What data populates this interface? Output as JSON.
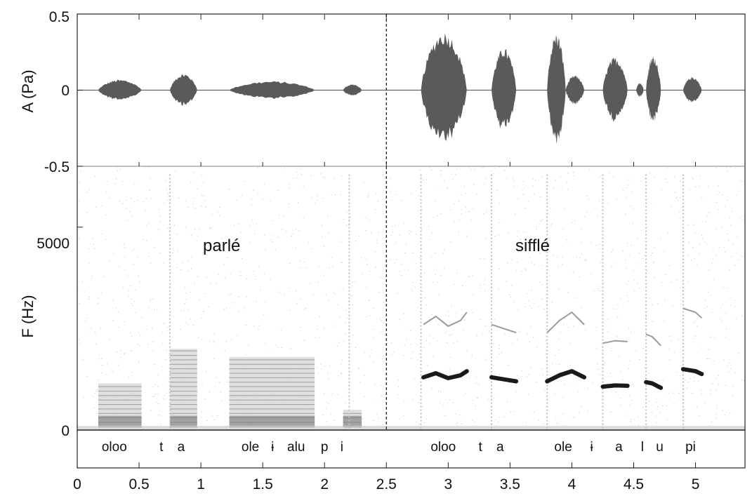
{
  "chart_data": [
    {
      "type": "line",
      "panel": "waveform",
      "ylabel": "A (Pa)",
      "ylim": [
        -0.5,
        0.5
      ],
      "yticks": [
        "0.5",
        "0",
        "-0.5"
      ],
      "grid": false,
      "bursts": [
        {
          "start": 0.17,
          "end": 0.52,
          "amp": 0.07
        },
        {
          "start": 0.75,
          "end": 0.97,
          "amp": 0.11
        },
        {
          "start": 1.23,
          "end": 1.92,
          "amp": 0.06
        },
        {
          "start": 2.15,
          "end": 2.3,
          "amp": 0.04
        },
        {
          "start": 2.78,
          "end": 3.15,
          "amp": 0.39
        },
        {
          "start": 3.35,
          "end": 3.55,
          "amp": 0.28
        },
        {
          "start": 3.8,
          "end": 3.95,
          "amp": 0.38
        },
        {
          "start": 3.95,
          "end": 4.1,
          "amp": 0.1
        },
        {
          "start": 4.25,
          "end": 4.45,
          "amp": 0.22
        },
        {
          "start": 4.52,
          "end": 4.58,
          "amp": 0.05
        },
        {
          "start": 4.6,
          "end": 4.72,
          "amp": 0.23
        },
        {
          "start": 4.9,
          "end": 5.05,
          "amp": 0.09
        }
      ]
    },
    {
      "type": "heatmap",
      "panel": "spectrogram",
      "ylabel": "F (Hz)",
      "yticks": [
        "5000",
        "0"
      ],
      "xlim": [
        0,
        5.4
      ],
      "ylim": [
        0,
        6500
      ],
      "xticks": [
        "0",
        "0.5",
        "1",
        "1.5",
        "2",
        "2.5",
        "3",
        "3.5",
        "4",
        "4.5",
        "5"
      ],
      "annotations": [
        "parlé",
        "sifflé"
      ],
      "divider_x": 2.5,
      "whistle_tracks": [
        {
          "x": [
            2.8,
            2.9,
            3.0,
            3.1,
            3.15
          ],
          "y": [
            1300,
            1400,
            1280,
            1350,
            1450
          ]
        },
        {
          "x": [
            3.35,
            3.45,
            3.55
          ],
          "y": [
            1300,
            1250,
            1200
          ]
        },
        {
          "x": [
            3.8,
            3.9,
            4.0,
            4.1
          ],
          "y": [
            1200,
            1350,
            1450,
            1300
          ]
        },
        {
          "x": [
            4.25,
            4.35,
            4.45
          ],
          "y": [
            1070,
            1100,
            1090
          ]
        },
        {
          "x": [
            4.6,
            4.65,
            4.72
          ],
          "y": [
            1180,
            1150,
            1040
          ]
        },
        {
          "x": [
            4.9,
            5.0,
            5.05
          ],
          "y": [
            1500,
            1450,
            1380
          ]
        }
      ]
    }
  ],
  "segments": [
    {
      "text": "oloo",
      "x": 0.3
    },
    {
      "text": "t",
      "x": 0.68
    },
    {
      "text": "a",
      "x": 0.84
    },
    {
      "text": "ole",
      "x": 1.4
    },
    {
      "text": "ɨ",
      "x": 1.58
    },
    {
      "text": "alu",
      "x": 1.77
    },
    {
      "text": "p",
      "x": 2.0
    },
    {
      "text": "i",
      "x": 2.14
    },
    {
      "text": "oloo",
      "x": 2.96
    },
    {
      "text": "t",
      "x": 3.26
    },
    {
      "text": "a",
      "x": 3.42
    },
    {
      "text": "ole",
      "x": 3.93
    },
    {
      "text": "ɨ",
      "x": 4.16
    },
    {
      "text": "a",
      "x": 4.38
    },
    {
      "text": "l",
      "x": 4.57
    },
    {
      "text": "u",
      "x": 4.71
    },
    {
      "text": "pi",
      "x": 4.96
    }
  ]
}
